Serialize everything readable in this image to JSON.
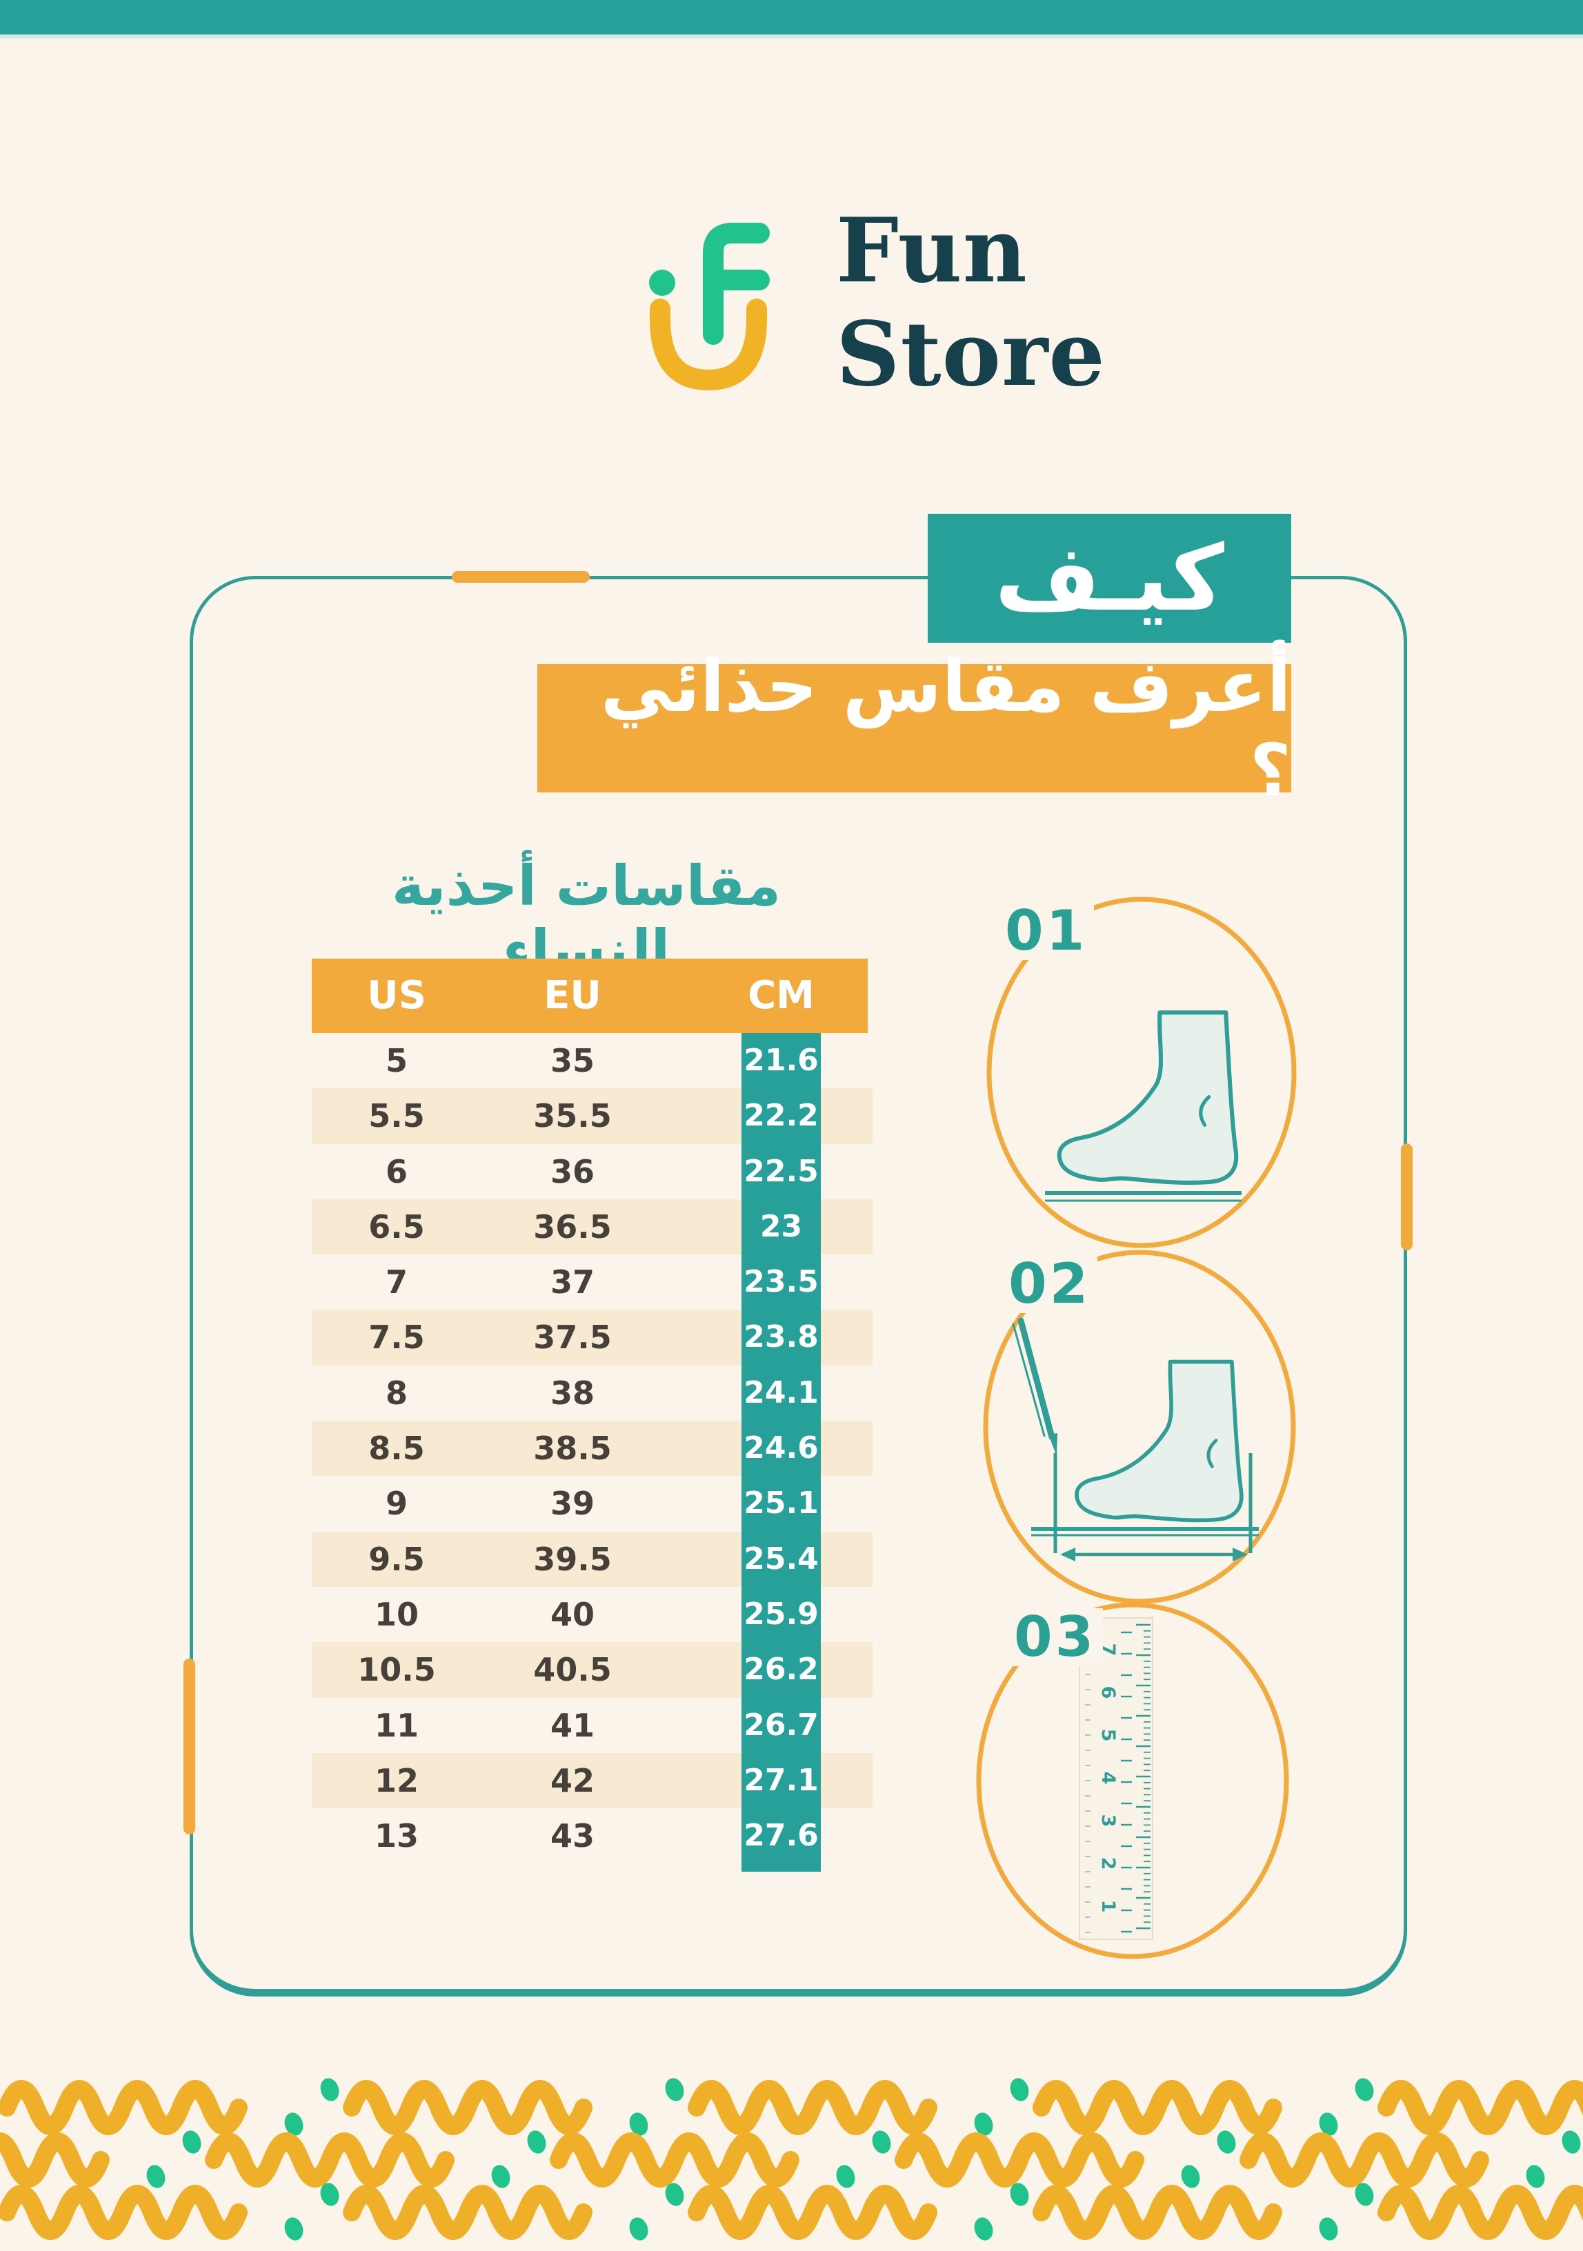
{
  "theme": {
    "bg": "#FBF4EA",
    "teal": "#28A09A",
    "teal_dark": "#2F9E96",
    "orange": "#F2AA3D",
    "yellow": "#F0AF29",
    "yellow2": "#F2B226",
    "green": "#21C38C",
    "wordmark": "#16404B",
    "ink": "#45403A",
    "stripe": "#F8E9D2",
    "foot_fill": "#E7F0EA"
  },
  "logo": {
    "word_line1": "Fun",
    "word_line2": "Store"
  },
  "hero": {
    "how": "كيـف",
    "question": "أعرف مقاس حذائي ؟"
  },
  "size_chart": {
    "title_regular": "مقاسات أحذية",
    "title_bold": "النساء",
    "columns": [
      "US",
      "EU",
      "CM"
    ],
    "rows": [
      {
        "us": "5",
        "eu": "35",
        "cm": "21.6"
      },
      {
        "us": "5.5",
        "eu": "35.5",
        "cm": "22.2"
      },
      {
        "us": "6",
        "eu": "36",
        "cm": "22.5"
      },
      {
        "us": "6.5",
        "eu": "36.5",
        "cm": "23"
      },
      {
        "us": "7",
        "eu": "37",
        "cm": "23.5"
      },
      {
        "us": "7.5",
        "eu": "37.5",
        "cm": "23.8"
      },
      {
        "us": "8",
        "eu": "38",
        "cm": "24.1"
      },
      {
        "us": "8.5",
        "eu": "38.5",
        "cm": "24.6"
      },
      {
        "us": "9",
        "eu": "39",
        "cm": "25.1"
      },
      {
        "us": "9.5",
        "eu": "39.5",
        "cm": "25.4"
      },
      {
        "us": "10",
        "eu": "40",
        "cm": "25.9"
      },
      {
        "us": "10.5",
        "eu": "40.5",
        "cm": "26.2"
      },
      {
        "us": "11",
        "eu": "41",
        "cm": "26.7"
      },
      {
        "us": "12",
        "eu": "42",
        "cm": "27.1"
      },
      {
        "us": "13",
        "eu": "43",
        "cm": "27.6"
      }
    ]
  },
  "steps": [
    {
      "number": "01"
    },
    {
      "number": "02"
    },
    {
      "number": "03",
      "ruler_numbers": [
        "7",
        "6",
        "5",
        "4",
        "3",
        "2",
        "1"
      ]
    }
  ]
}
